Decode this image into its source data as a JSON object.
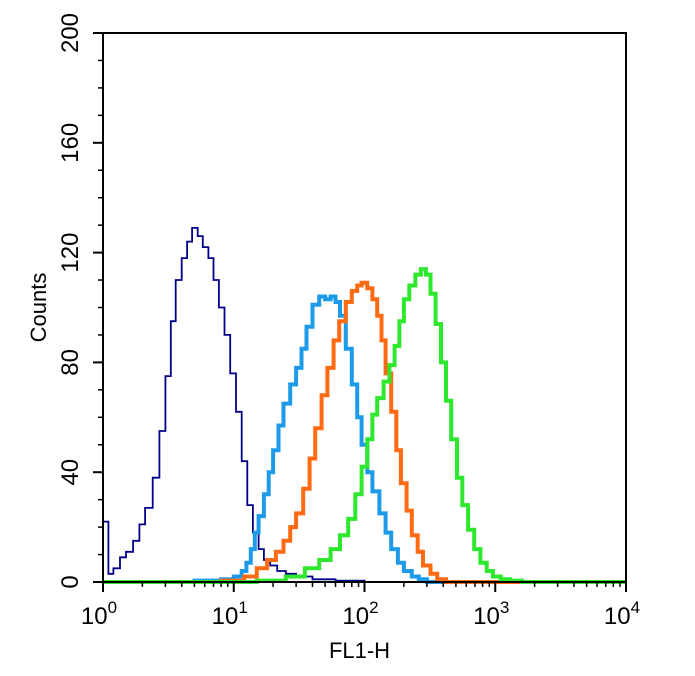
{
  "chart_data": {
    "type": "line",
    "title": "",
    "xlabel": "FL1-H",
    "ylabel": "Counts",
    "xscale": "log",
    "xlim": [
      1,
      10000
    ],
    "ylim": [
      0,
      200
    ],
    "x_ticks": [
      {
        "value": 1,
        "base": "10",
        "exp": "0"
      },
      {
        "value": 10,
        "base": "10",
        "exp": "1"
      },
      {
        "value": 100,
        "base": "10",
        "exp": "2"
      },
      {
        "value": 1000,
        "base": "10",
        "exp": "3"
      },
      {
        "value": 10000,
        "base": "10",
        "exp": "4"
      }
    ],
    "y_ticks": [
      "0",
      "40",
      "80",
      "120",
      "160",
      "200"
    ],
    "grid": false,
    "legend": "none",
    "series": [
      {
        "color": "#00008b",
        "points": [
          [
            1.0,
            22
          ],
          [
            1.1,
            3
          ],
          [
            1.2,
            5
          ],
          [
            1.35,
            9
          ],
          [
            1.5,
            11
          ],
          [
            1.7,
            15
          ],
          [
            1.9,
            21
          ],
          [
            2.1,
            27
          ],
          [
            2.4,
            38
          ],
          [
            2.7,
            55
          ],
          [
            3.0,
            75
          ],
          [
            3.3,
            95
          ],
          [
            3.6,
            110
          ],
          [
            4.0,
            118
          ],
          [
            4.4,
            124
          ],
          [
            4.8,
            129
          ],
          [
            5.3,
            126
          ],
          [
            5.8,
            122
          ],
          [
            6.4,
            118
          ],
          [
            7.0,
            110
          ],
          [
            7.7,
            100
          ],
          [
            8.5,
            90
          ],
          [
            9.4,
            76
          ],
          [
            10.4,
            62
          ],
          [
            11.5,
            44
          ],
          [
            12.7,
            28
          ],
          [
            14.0,
            18
          ],
          [
            15.5,
            12
          ],
          [
            17.0,
            8
          ],
          [
            19.0,
            6
          ],
          [
            21.5,
            4
          ],
          [
            25,
            3
          ],
          [
            30,
            2
          ],
          [
            40,
            1
          ],
          [
            60,
            0.5
          ],
          [
            100,
            0
          ],
          [
            10000,
            0
          ]
        ]
      },
      {
        "color": "#1e9be8",
        "points": [
          [
            1,
            0
          ],
          [
            5,
            0.5
          ],
          [
            8,
            1
          ],
          [
            10,
            2
          ],
          [
            11.5,
            4
          ],
          [
            12.5,
            7
          ],
          [
            13.5,
            12
          ],
          [
            14.5,
            18
          ],
          [
            15.5,
            24
          ],
          [
            17,
            32
          ],
          [
            18.5,
            40
          ],
          [
            20,
            48
          ],
          [
            22,
            57
          ],
          [
            24,
            65
          ],
          [
            27,
            72
          ],
          [
            30,
            78
          ],
          [
            33,
            85
          ],
          [
            36,
            93
          ],
          [
            40,
            101
          ],
          [
            45,
            104
          ],
          [
            50,
            103
          ],
          [
            55,
            104
          ],
          [
            60,
            102
          ],
          [
            65,
            97
          ],
          [
            72,
            85
          ],
          [
            80,
            72
          ],
          [
            88,
            60
          ],
          [
            95,
            50
          ],
          [
            105,
            40
          ],
          [
            115,
            33
          ],
          [
            130,
            25
          ],
          [
            145,
            18
          ],
          [
            160,
            12
          ],
          [
            180,
            7
          ],
          [
            200,
            4
          ],
          [
            230,
            2
          ],
          [
            260,
            1
          ],
          [
            300,
            0
          ],
          [
            10000,
            0
          ]
        ]
      },
      {
        "color": "#ff6a13",
        "points": [
          [
            1,
            0
          ],
          [
            8,
            0.5
          ],
          [
            12,
            2
          ],
          [
            15,
            5
          ],
          [
            18,
            8
          ],
          [
            21,
            11
          ],
          [
            24,
            15
          ],
          [
            27,
            20
          ],
          [
            30,
            25
          ],
          [
            34,
            34
          ],
          [
            38,
            45
          ],
          [
            42,
            56
          ],
          [
            47,
            68
          ],
          [
            52,
            78
          ],
          [
            58,
            88
          ],
          [
            64,
            95
          ],
          [
            72,
            102
          ],
          [
            80,
            106
          ],
          [
            88,
            108
          ],
          [
            95,
            109
          ],
          [
            105,
            107
          ],
          [
            115,
            103
          ],
          [
            125,
            97
          ],
          [
            135,
            88
          ],
          [
            145,
            76
          ],
          [
            160,
            62
          ],
          [
            175,
            48
          ],
          [
            190,
            36
          ],
          [
            210,
            26
          ],
          [
            230,
            17
          ],
          [
            255,
            11
          ],
          [
            280,
            6
          ],
          [
            320,
            3
          ],
          [
            360,
            1
          ],
          [
            420,
            0
          ],
          [
            10000,
            0
          ]
        ]
      },
      {
        "color": "#2ee82e",
        "points": [
          [
            1,
            0
          ],
          [
            15,
            0.5
          ],
          [
            25,
            2
          ],
          [
            35,
            5
          ],
          [
            45,
            8
          ],
          [
            55,
            12
          ],
          [
            65,
            17
          ],
          [
            75,
            23
          ],
          [
            85,
            32
          ],
          [
            95,
            42
          ],
          [
            105,
            52
          ],
          [
            115,
            61
          ],
          [
            125,
            67
          ],
          [
            140,
            73
          ],
          [
            155,
            79
          ],
          [
            170,
            86
          ],
          [
            185,
            95
          ],
          [
            200,
            103
          ],
          [
            220,
            108
          ],
          [
            245,
            112
          ],
          [
            270,
            114
          ],
          [
            295,
            112
          ],
          [
            320,
            105
          ],
          [
            350,
            94
          ],
          [
            385,
            80
          ],
          [
            420,
            66
          ],
          [
            460,
            52
          ],
          [
            510,
            38
          ],
          [
            560,
            28
          ],
          [
            620,
            19
          ],
          [
            690,
            12
          ],
          [
            770,
            7
          ],
          [
            860,
            4
          ],
          [
            960,
            2
          ],
          [
            1100,
            1
          ],
          [
            1300,
            0.5
          ],
          [
            1600,
            0
          ],
          [
            10000,
            0
          ]
        ]
      }
    ]
  }
}
